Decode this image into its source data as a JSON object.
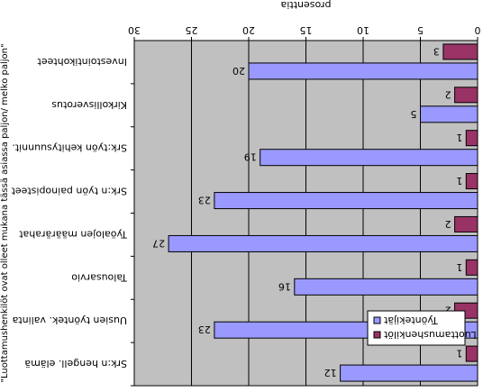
{
  "chart_data": {
    "type": "bar",
    "orientation": "horizontal",
    "rotation_degrees": 180,
    "xlabel": "prosenttia",
    "ylabel": "\"Luottamushenkilöt ovat olleet mukana tässä asiassa paljon/ melko paljon\"",
    "xlim": [
      0,
      30
    ],
    "xticks": [
      0,
      5,
      10,
      15,
      20,
      25,
      30
    ],
    "grid": true,
    "legend_position": "inside lower-right",
    "categories": [
      "Srk:n hengell. elämä",
      "Uusien työntek. valinta",
      "Talousarvio",
      "Työalojen määrärahat",
      "Srk:n työn painopisteet",
      "Srk:työn kehitysuunnit.",
      "Kirkollisverotus",
      "Investointikohteet"
    ],
    "series": [
      {
        "name": "Työntekijät",
        "color": "#9999ff",
        "values": [
          12,
          23,
          16,
          27,
          23,
          19,
          5,
          20
        ]
      },
      {
        "name": "Luottamushenkilöt",
        "color": "#993366",
        "values": [
          1,
          2,
          1,
          2,
          1,
          1,
          2,
          3
        ]
      }
    ],
    "colors": {
      "plot_bg": "#c0c0c0",
      "grid": "#000000"
    }
  }
}
